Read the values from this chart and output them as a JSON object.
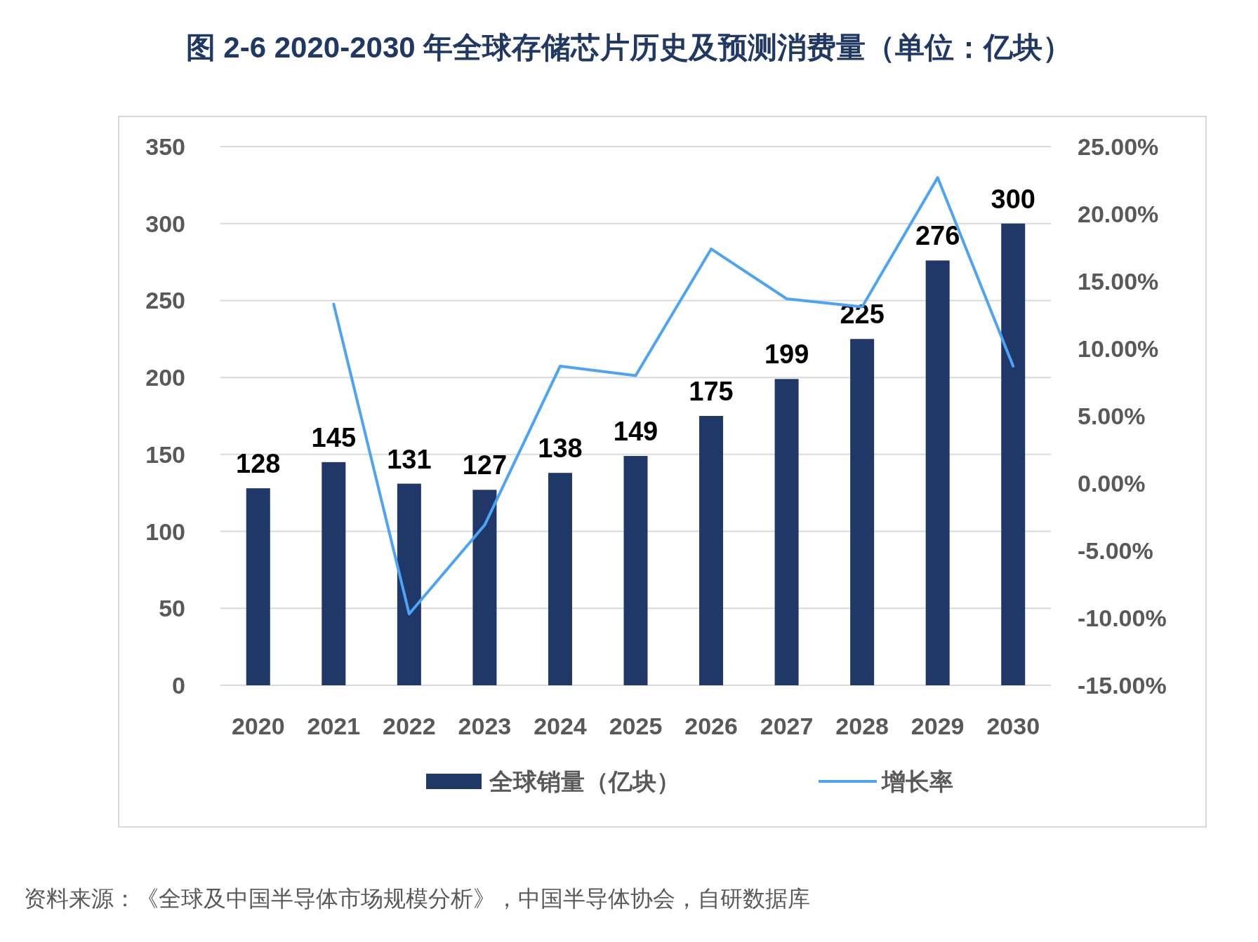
{
  "chart_data": {
    "type": "bar",
    "title": "图 2-6 2020-2030 年全球存储芯片历史及预测消费量（单位：亿块）",
    "categories": [
      "2020",
      "2021",
      "2022",
      "2023",
      "2024",
      "2025",
      "2026",
      "2027",
      "2028",
      "2029",
      "2030"
    ],
    "series": [
      {
        "name": "全球销量（亿块）",
        "color": "#1f3868",
        "values": [
          128,
          145,
          131,
          127,
          138,
          149,
          175,
          199,
          225,
          276,
          300
        ],
        "value_labels": [
          "128",
          "145",
          "131",
          "127",
          "138",
          "149",
          "175",
          "199",
          "225",
          "276",
          "300"
        ]
      },
      {
        "name": "增长率",
        "type": "line",
        "axis": "y2",
        "color": "#4da3f5",
        "values": [
          null,
          13.3,
          -9.7,
          -3.1,
          8.7,
          8.0,
          17.4,
          13.7,
          13.1,
          22.7,
          8.7
        ]
      }
    ],
    "ylim": [
      0,
      350
    ],
    "yticks": [
      0,
      50,
      100,
      150,
      200,
      250,
      300,
      350
    ],
    "y2lim": [
      -15,
      25
    ],
    "y2ticks": [
      {
        "value": -15,
        "label": "-15.00%"
      },
      {
        "value": -10,
        "label": "-10.00%"
      },
      {
        "value": -5,
        "label": "-5.00%"
      },
      {
        "value": 0,
        "label": "0.00%"
      },
      {
        "value": 5,
        "label": "5.00%"
      },
      {
        "value": 10,
        "label": "10.00%"
      },
      {
        "value": 15,
        "label": "15.00%"
      },
      {
        "value": 20,
        "label": "20.00%"
      },
      {
        "value": 25,
        "label": "25.00%"
      }
    ],
    "grid": "y",
    "legend": "bottom",
    "annotations": [
      "资料来源：《全球及中国半导体市场规模分析》，中国半导体协会，自研数据库"
    ]
  }
}
